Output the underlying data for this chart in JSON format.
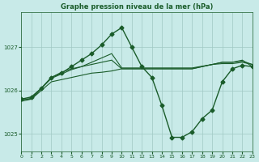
{
  "background_color": "#c8eae8",
  "plot_bg_color": "#c8eae8",
  "grid_color": "#a0c8c4",
  "line_color": "#1a5c2a",
  "title": "Graphe pression niveau de la mer (hPa)",
  "xlim": [
    0,
    23
  ],
  "ylim": [
    1024.6,
    1027.8
  ],
  "yticks": [
    1025,
    1026,
    1027
  ],
  "xticks": [
    0,
    1,
    2,
    3,
    4,
    5,
    6,
    7,
    8,
    9,
    10,
    11,
    12,
    13,
    14,
    15,
    16,
    17,
    18,
    19,
    20,
    21,
    22,
    23
  ],
  "hours": [
    0,
    1,
    2,
    3,
    4,
    5,
    6,
    7,
    8,
    9,
    10,
    11,
    12,
    13,
    14,
    15,
    16,
    17,
    18,
    19,
    20,
    21,
    22,
    23
  ],
  "line1": [
    1025.8,
    1025.8,
    1026.0,
    1026.2,
    1026.25,
    1026.3,
    1026.35,
    1026.4,
    1026.42,
    1026.45,
    1026.5,
    1026.5,
    1026.5,
    1026.5,
    1026.5,
    1026.5,
    1026.5,
    1026.5,
    1026.55,
    1026.6,
    1026.62,
    1026.62,
    1026.65,
    1026.6
  ],
  "line2": [
    1025.78,
    1025.82,
    1026.05,
    1026.28,
    1026.38,
    1026.48,
    1026.55,
    1026.65,
    1026.75,
    1026.85,
    1026.52,
    1026.52,
    1026.52,
    1026.52,
    1026.52,
    1026.52,
    1026.52,
    1026.52,
    1026.56,
    1026.6,
    1026.65,
    1026.65,
    1026.68,
    1026.6
  ],
  "line3": [
    1025.8,
    1025.85,
    1026.05,
    1026.3,
    1026.4,
    1026.55,
    1026.7,
    1026.85,
    1027.05,
    1027.3,
    1027.45,
    1027.0,
    1026.55,
    1026.3,
    1025.65,
    1024.92,
    1024.92,
    1025.05,
    1025.35,
    1025.55,
    1026.2,
    1026.5,
    1026.58,
    1026.55
  ],
  "line4": [
    1025.75,
    1025.8,
    1026.05,
    1026.3,
    1026.42,
    1026.5,
    1026.55,
    1026.6,
    1026.65,
    1026.7,
    1026.5,
    1026.5,
    1026.5,
    1026.5,
    1026.5,
    1026.5,
    1026.5,
    1026.5,
    1026.55,
    1026.6,
    1026.65,
    1026.65,
    1026.7,
    1026.55
  ]
}
